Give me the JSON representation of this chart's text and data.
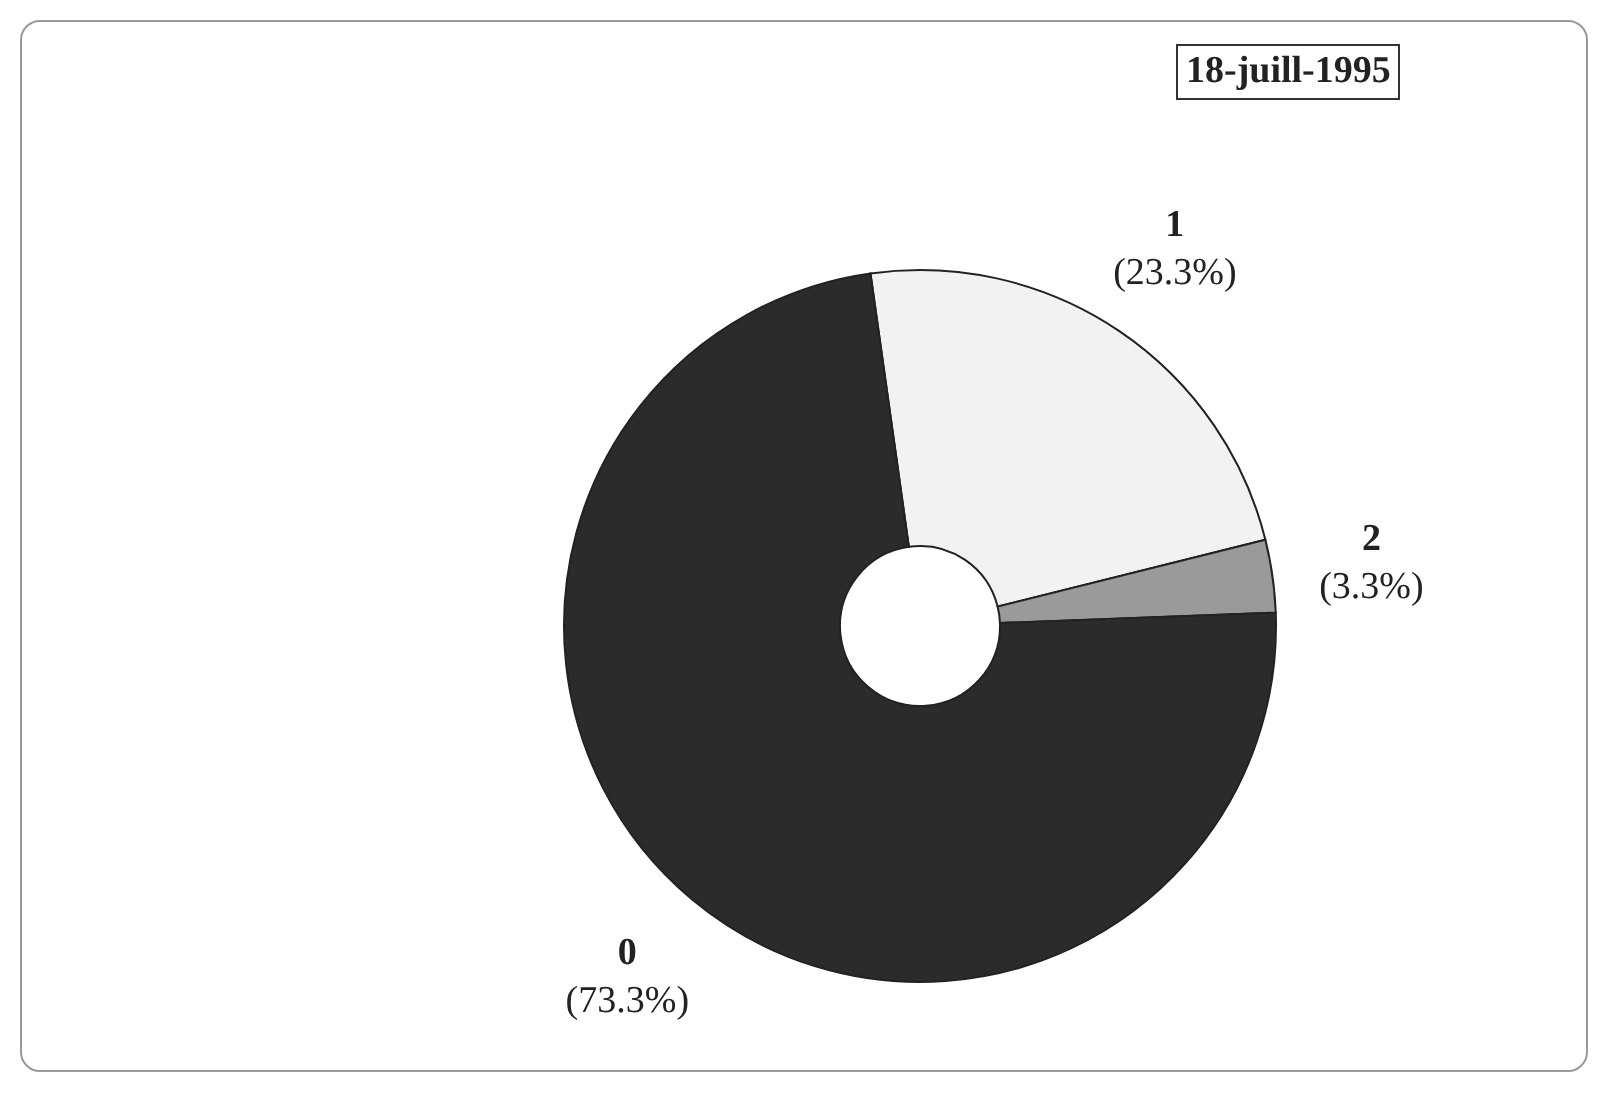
{
  "chart_data": {
    "type": "donut",
    "title": "18-juill-1995",
    "categories": [
      "1",
      "2",
      "0"
    ],
    "values": [
      23.3,
      3.3,
      73.3
    ],
    "colors": [
      "#f2f2f2",
      "#9a9a9a",
      "#2b2b2b"
    ],
    "value_labels": [
      "(23.3%)",
      "(3.3%)",
      "(73.3%)"
    ],
    "legend": false
  }
}
